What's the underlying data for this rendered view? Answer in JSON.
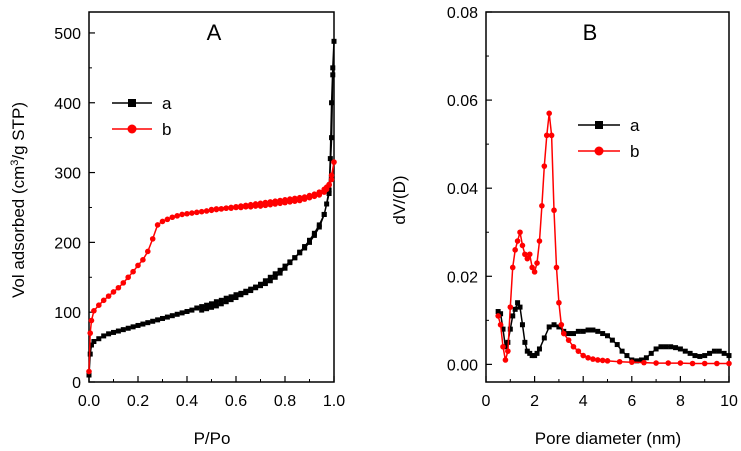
{
  "chart_data": [
    {
      "type": "line",
      "title": "A",
      "xlabel": "P/Po",
      "ylabel_main": "Vol adsorbed (cm",
      "ylabel_sup": "3",
      "ylabel_tail": "/g STP)",
      "xlim": [
        0.0,
        1.0
      ],
      "ylim": [
        0,
        530
      ],
      "xticks": [
        0.0,
        0.2,
        0.4,
        0.6,
        0.8,
        1.0
      ],
      "xtick_labels": [
        "0.0",
        "0.2",
        "0.4",
        "0.6",
        "0.8",
        "1.0"
      ],
      "yticks": [
        0,
        100,
        200,
        300,
        400,
        500
      ],
      "ytick_labels": [
        "0",
        "100",
        "200",
        "300",
        "400",
        "500"
      ],
      "legend_position": "upper-left",
      "series": [
        {
          "name": "a",
          "color": "#000000",
          "marker": "square",
          "x": [
            0.0,
            0.005,
            0.01,
            0.02,
            0.04,
            0.06,
            0.08,
            0.1,
            0.12,
            0.14,
            0.16,
            0.18,
            0.2,
            0.22,
            0.24,
            0.26,
            0.28,
            0.3,
            0.32,
            0.34,
            0.36,
            0.38,
            0.4,
            0.42,
            0.44,
            0.46,
            0.48,
            0.5,
            0.52,
            0.54,
            0.56,
            0.58,
            0.6,
            0.62,
            0.64,
            0.66,
            0.68,
            0.7,
            0.72,
            0.74,
            0.76,
            0.78,
            0.8,
            0.82,
            0.84,
            0.86,
            0.88,
            0.9,
            0.92,
            0.94,
            0.96,
            0.97,
            0.98,
            0.985,
            0.99,
            0.995,
            1.0,
            0.995,
            0.99,
            0.98,
            0.96,
            0.94,
            0.92,
            0.9,
            0.88,
            0.86,
            0.84,
            0.82,
            0.8,
            0.78,
            0.76,
            0.74,
            0.72,
            0.7,
            0.68,
            0.66,
            0.64,
            0.62,
            0.6,
            0.58,
            0.56,
            0.54,
            0.52,
            0.5,
            0.48,
            0.46
          ],
          "values": [
            10,
            40,
            53,
            58,
            62,
            66,
            69,
            71,
            73,
            75,
            77,
            79,
            81,
            83,
            85,
            87,
            89,
            91,
            93,
            95,
            97,
            99,
            101,
            103,
            106,
            108,
            110,
            112,
            115,
            117,
            120,
            122,
            125,
            127,
            130,
            133,
            136,
            140,
            145,
            150,
            155,
            160,
            166,
            172,
            178,
            185,
            192,
            200,
            210,
            222,
            240,
            255,
            275,
            320,
            400,
            450,
            488,
            440,
            350,
            270,
            240,
            225,
            213,
            203,
            194,
            186,
            178,
            171,
            163,
            156,
            150,
            145,
            141,
            138,
            135,
            131,
            128,
            125,
            121,
            118,
            115,
            112,
            109,
            107,
            105,
            103
          ]
        },
        {
          "name": "b",
          "color": "#ff0000",
          "marker": "circle",
          "x": [
            0.0,
            0.005,
            0.01,
            0.02,
            0.04,
            0.06,
            0.08,
            0.1,
            0.12,
            0.14,
            0.16,
            0.18,
            0.2,
            0.22,
            0.24,
            0.26,
            0.28,
            0.3,
            0.32,
            0.34,
            0.36,
            0.38,
            0.4,
            0.42,
            0.44,
            0.46,
            0.48,
            0.5,
            0.52,
            0.54,
            0.56,
            0.58,
            0.6,
            0.62,
            0.64,
            0.66,
            0.68,
            0.7,
            0.72,
            0.74,
            0.76,
            0.78,
            0.8,
            0.82,
            0.84,
            0.86,
            0.88,
            0.9,
            0.92,
            0.94,
            0.96,
            0.97,
            0.98,
            0.99,
            1.0,
            0.99,
            0.98,
            0.97,
            0.96,
            0.94,
            0.92,
            0.9,
            0.88,
            0.86,
            0.84,
            0.82,
            0.8,
            0.78,
            0.76,
            0.74,
            0.72,
            0.7,
            0.68,
            0.66,
            0.64,
            0.62,
            0.6,
            0.58,
            0.56,
            0.54,
            0.52,
            0.5
          ],
          "values": [
            15,
            70,
            88,
            102,
            110,
            117,
            123,
            129,
            135,
            142,
            150,
            158,
            167,
            175,
            187,
            205,
            225,
            230,
            233,
            236,
            238,
            240,
            241,
            242,
            243,
            244,
            245,
            246,
            247,
            248,
            249,
            250,
            251,
            252,
            253,
            254,
            255,
            256,
            257,
            258,
            259,
            260,
            261,
            262,
            263,
            264,
            265,
            267,
            269,
            272,
            276,
            279,
            283,
            296,
            315,
            290,
            282,
            276,
            272,
            268,
            266,
            264,
            262,
            260,
            259,
            258,
            257,
            256,
            255,
            254,
            253,
            252,
            252,
            251,
            251,
            250,
            250,
            249,
            249,
            248,
            248,
            247
          ]
        }
      ]
    },
    {
      "type": "line",
      "title": "B",
      "xlabel": "Pore diameter (nm)",
      "ylabel": "dV/(D)",
      "xlim": [
        0,
        10
      ],
      "ylim": [
        -0.004,
        0.08
      ],
      "xticks": [
        0,
        2,
        4,
        6,
        8,
        10
      ],
      "xtick_labels": [
        "0",
        "2",
        "4",
        "6",
        "8",
        "10"
      ],
      "yticks": [
        0.0,
        0.02,
        0.04,
        0.06,
        0.08
      ],
      "ytick_labels": [
        "0.00",
        "0.02",
        "0.04",
        "0.06",
        "0.08"
      ],
      "legend_position": "upper-right",
      "series": [
        {
          "name": "a",
          "color": "#000000",
          "marker": "square",
          "x": [
            0.5,
            0.6,
            0.7,
            0.8,
            0.9,
            1.0,
            1.1,
            1.2,
            1.3,
            1.4,
            1.5,
            1.6,
            1.7,
            1.8,
            1.9,
            2.0,
            2.1,
            2.2,
            2.4,
            2.6,
            2.8,
            3.0,
            3.2,
            3.4,
            3.6,
            3.8,
            4.0,
            4.2,
            4.4,
            4.6,
            4.8,
            5.0,
            5.2,
            5.4,
            5.6,
            5.8,
            6.0,
            6.2,
            6.4,
            6.6,
            6.8,
            7.0,
            7.2,
            7.4,
            7.6,
            7.8,
            8.0,
            8.2,
            8.4,
            8.6,
            8.8,
            9.0,
            9.2,
            9.4,
            9.6,
            9.8,
            10.0
          ],
          "values": [
            0.012,
            0.0115,
            0.008,
            0.004,
            0.005,
            0.008,
            0.011,
            0.0125,
            0.014,
            0.013,
            0.009,
            0.005,
            0.003,
            0.0025,
            0.002,
            0.002,
            0.0025,
            0.0035,
            0.006,
            0.0085,
            0.009,
            0.0085,
            0.0075,
            0.007,
            0.007,
            0.0075,
            0.0075,
            0.0078,
            0.0078,
            0.0075,
            0.007,
            0.0065,
            0.0055,
            0.0045,
            0.003,
            0.002,
            0.001,
            0.0008,
            0.001,
            0.0015,
            0.0025,
            0.0035,
            0.004,
            0.004,
            0.004,
            0.0038,
            0.0035,
            0.003,
            0.0025,
            0.002,
            0.0018,
            0.002,
            0.0025,
            0.003,
            0.003,
            0.0025,
            0.002
          ]
        },
        {
          "name": "b",
          "color": "#ff0000",
          "marker": "circle",
          "x": [
            0.5,
            0.6,
            0.7,
            0.8,
            0.9,
            1.0,
            1.1,
            1.2,
            1.3,
            1.4,
            1.5,
            1.6,
            1.7,
            1.8,
            1.9,
            2.0,
            2.1,
            2.2,
            2.3,
            2.4,
            2.5,
            2.6,
            2.7,
            2.8,
            2.9,
            3.0,
            3.1,
            3.2,
            3.4,
            3.6,
            3.8,
            4.0,
            4.2,
            4.4,
            4.6,
            4.8,
            5.0,
            5.5,
            6.0,
            6.5,
            7.0,
            7.5,
            8.0,
            8.5,
            9.0,
            9.5,
            10.0
          ],
          "values": [
            0.011,
            0.009,
            0.004,
            0.001,
            0.003,
            0.013,
            0.022,
            0.026,
            0.028,
            0.03,
            0.027,
            0.025,
            0.024,
            0.025,
            0.022,
            0.021,
            0.023,
            0.028,
            0.036,
            0.045,
            0.052,
            0.057,
            0.052,
            0.035,
            0.022,
            0.014,
            0.009,
            0.007,
            0.0055,
            0.004,
            0.003,
            0.002,
            0.0015,
            0.0012,
            0.001,
            0.0009,
            0.0008,
            0.0006,
            0.0005,
            0.0004,
            0.0003,
            0.0003,
            0.0003,
            0.0002,
            0.0002,
            0.0002,
            0.0002
          ]
        }
      ]
    }
  ]
}
